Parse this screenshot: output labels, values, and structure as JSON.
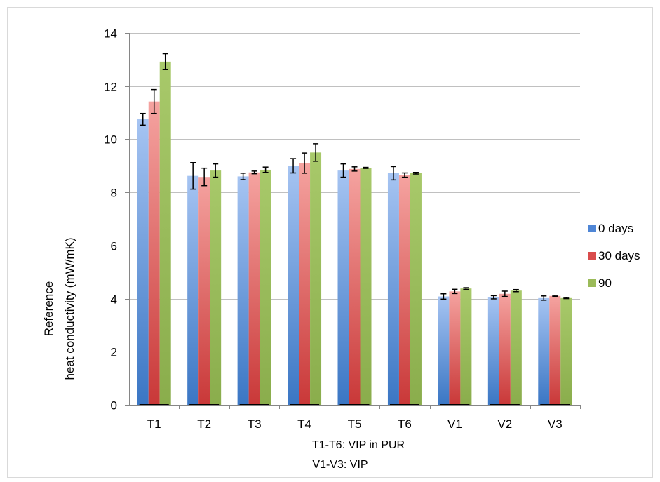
{
  "chart_data": {
    "type": "bar",
    "title": "",
    "xlabel_lines": [
      "T1-T6: VIP in PUR",
      "V1-V3: VIP"
    ],
    "ylabel_lines": [
      "Reference",
      "heat conductivity  (mW/mK)"
    ],
    "categories": [
      "T1",
      "T2",
      "T3",
      "T4",
      "T5",
      "T6",
      "V1",
      "V2",
      "V3"
    ],
    "ylim": [
      0,
      14
    ],
    "yticks": [
      0,
      2,
      4,
      6,
      8,
      10,
      12,
      14
    ],
    "grid": true,
    "legend_position": "right",
    "series": [
      {
        "name": "0 days",
        "values": [
          10.75,
          8.62,
          8.6,
          9.0,
          8.82,
          8.72,
          4.08,
          4.05,
          4.02
        ],
        "errors": [
          0.22,
          0.5,
          0.12,
          0.27,
          0.25,
          0.25,
          0.1,
          0.06,
          0.08
        ]
      },
      {
        "name": "30 days",
        "values": [
          11.42,
          8.58,
          8.75,
          9.1,
          8.88,
          8.65,
          4.27,
          4.18,
          4.1
        ],
        "errors": [
          0.45,
          0.33,
          0.05,
          0.38,
          0.08,
          0.08,
          0.08,
          0.1,
          0.02
        ]
      },
      {
        "name": "90",
        "values": [
          12.92,
          8.82,
          8.85,
          9.5,
          8.92,
          8.72,
          4.38,
          4.3,
          4.02
        ],
        "errors": [
          0.3,
          0.25,
          0.1,
          0.33,
          0.02,
          0.03,
          0.03,
          0.04,
          0.02
        ]
      }
    ]
  },
  "colors": {
    "series": [
      {
        "top": "#a6c4f2",
        "bottom": "#3a76c4"
      },
      {
        "top": "#f5a3a0",
        "bottom": "#c93838"
      },
      {
        "top": "#a8c96a",
        "bottom": "#8aad4c"
      }
    ],
    "legend_swatches": [
      "#4f86d6",
      "#d94c4c",
      "#9bbb59"
    ],
    "grid": "#c0c0c0",
    "axis": "#868686",
    "frame": "#d9d9d9"
  }
}
